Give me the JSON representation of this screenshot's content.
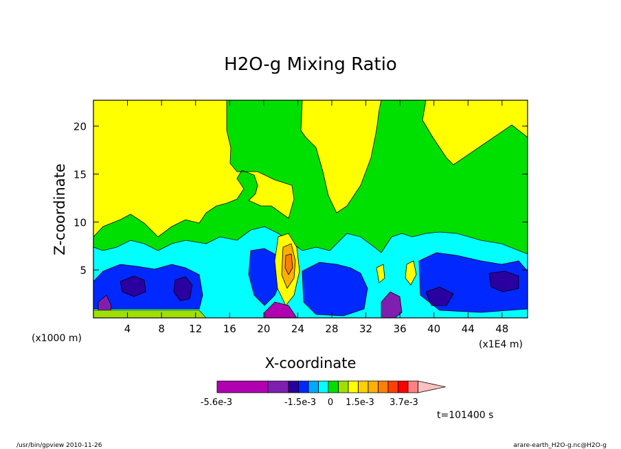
{
  "chart_data": {
    "type": "heatmap",
    "title": "H2O-g Mixing Ratio",
    "xlabel": "X-coordinate",
    "ylabel": "Z-coordinate",
    "x_unit_left": "(x1000 m)",
    "x_unit_right": "(x1E4 m)",
    "xlim": [
      0,
      51
    ],
    "ylim": [
      0,
      22.7
    ],
    "x_ticks": [
      "4",
      "8",
      "12",
      "16",
      "20",
      "24",
      "28",
      "32",
      "36",
      "40",
      "44",
      "48"
    ],
    "x_tick_values": [
      4,
      8,
      12,
      16,
      20,
      24,
      28,
      32,
      36,
      40,
      44,
      48
    ],
    "y_ticks": [
      "5",
      "10",
      "15",
      "20"
    ],
    "y_tick_values": [
      5,
      10,
      15,
      20
    ],
    "grid": false,
    "colorbar": {
      "labels": [
        "-5.6e-3",
        "-1.5e-3",
        "0",
        "1.5e-3",
        "3.7e-3"
      ],
      "colors": [
        "#b000b0",
        "#7f1fb0",
        "#2a00a0",
        "#0028ff",
        "#00a8ff",
        "#00ffff",
        "#00e000",
        "#a0e000",
        "#ffff00",
        "#ffd000",
        "#ffb000",
        "#ff8000",
        "#ff4000",
        "#ff0000",
        "#ff8080",
        "#ffc0c0"
      ]
    },
    "time_label": "t=101400 s"
  },
  "footer": {
    "left": "/usr/bin/gpview  2010-11-26",
    "right": "arare-earth_H2O-g.nc@H2O-g"
  }
}
